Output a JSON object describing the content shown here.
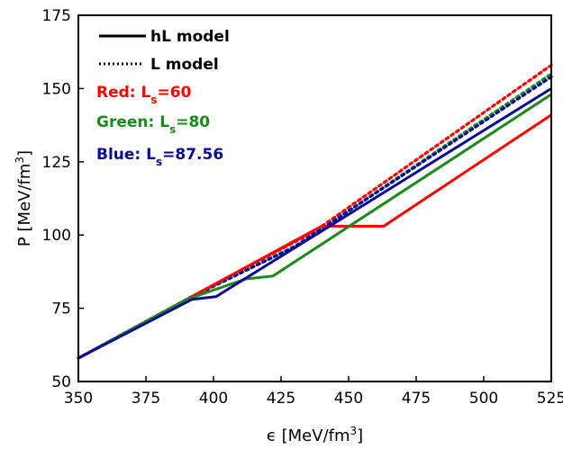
{
  "chart_data": {
    "type": "line",
    "xlabel": "ϵ [MeV/fm",
    "xlabel_sup": "3",
    "xlabel_tail": "]",
    "ylabel": "P [MeV/fm",
    "ylabel_sup": "3",
    "ylabel_tail": "]",
    "xlim": [
      350,
      525
    ],
    "ylim": [
      50,
      175
    ],
    "xticks": [
      350,
      375,
      400,
      425,
      450,
      475,
      500,
      525
    ],
    "yticks": [
      50,
      75,
      100,
      125,
      150,
      175
    ],
    "grid": false,
    "legend": {
      "placement": "top-left",
      "style_items": [
        {
          "label": "hL model",
          "dash": "solid"
        },
        {
          "label": "L model",
          "dash": "dotted"
        }
      ],
      "color_items": [
        {
          "prefix": "Red: L",
          "sub": "s",
          "suffix": "=60",
          "color": "#ff0000"
        },
        {
          "prefix": "Green: L",
          "sub": "s",
          "suffix": "=80",
          "color": "#1a8a1a"
        },
        {
          "prefix": "Blue: L",
          "sub": "s",
          "suffix": "=87.56",
          "color": "#0a0a96"
        }
      ]
    },
    "series": [
      {
        "model": "L",
        "Ls": "60",
        "color": "#ff0000",
        "dash": "dotted",
        "x": [
          350,
          390,
          437,
          525
        ],
        "y": [
          58,
          78,
          101,
          158
        ]
      },
      {
        "model": "L",
        "Ls": "80",
        "color": "#1a8a1a",
        "dash": "dotted",
        "x": [
          350,
          390,
          432,
          525
        ],
        "y": [
          58,
          78,
          97,
          155
        ]
      },
      {
        "model": "L",
        "Ls": "87.56",
        "color": "#0a0a96",
        "dash": "dotted",
        "x": [
          350,
          390,
          430,
          525
        ],
        "y": [
          58,
          78,
          96,
          154
        ]
      },
      {
        "model": "hL",
        "Ls": "60",
        "color": "#ff0000",
        "dash": "solid",
        "x": [
          350,
          390,
          440,
          463,
          525
        ],
        "y": [
          58,
          78,
          103,
          103,
          141
        ]
      },
      {
        "model": "hL",
        "Ls": "80",
        "color": "#1a8a1a",
        "dash": "solid",
        "x": [
          350,
          390,
          412,
          422,
          525
        ],
        "y": [
          58,
          78,
          85,
          86,
          148
        ]
      },
      {
        "model": "hL",
        "Ls": "87.56",
        "color": "#0a0a96",
        "dash": "solid",
        "x": [
          350,
          392,
          401,
          525
        ],
        "y": [
          58,
          78,
          79,
          150
        ]
      }
    ]
  }
}
